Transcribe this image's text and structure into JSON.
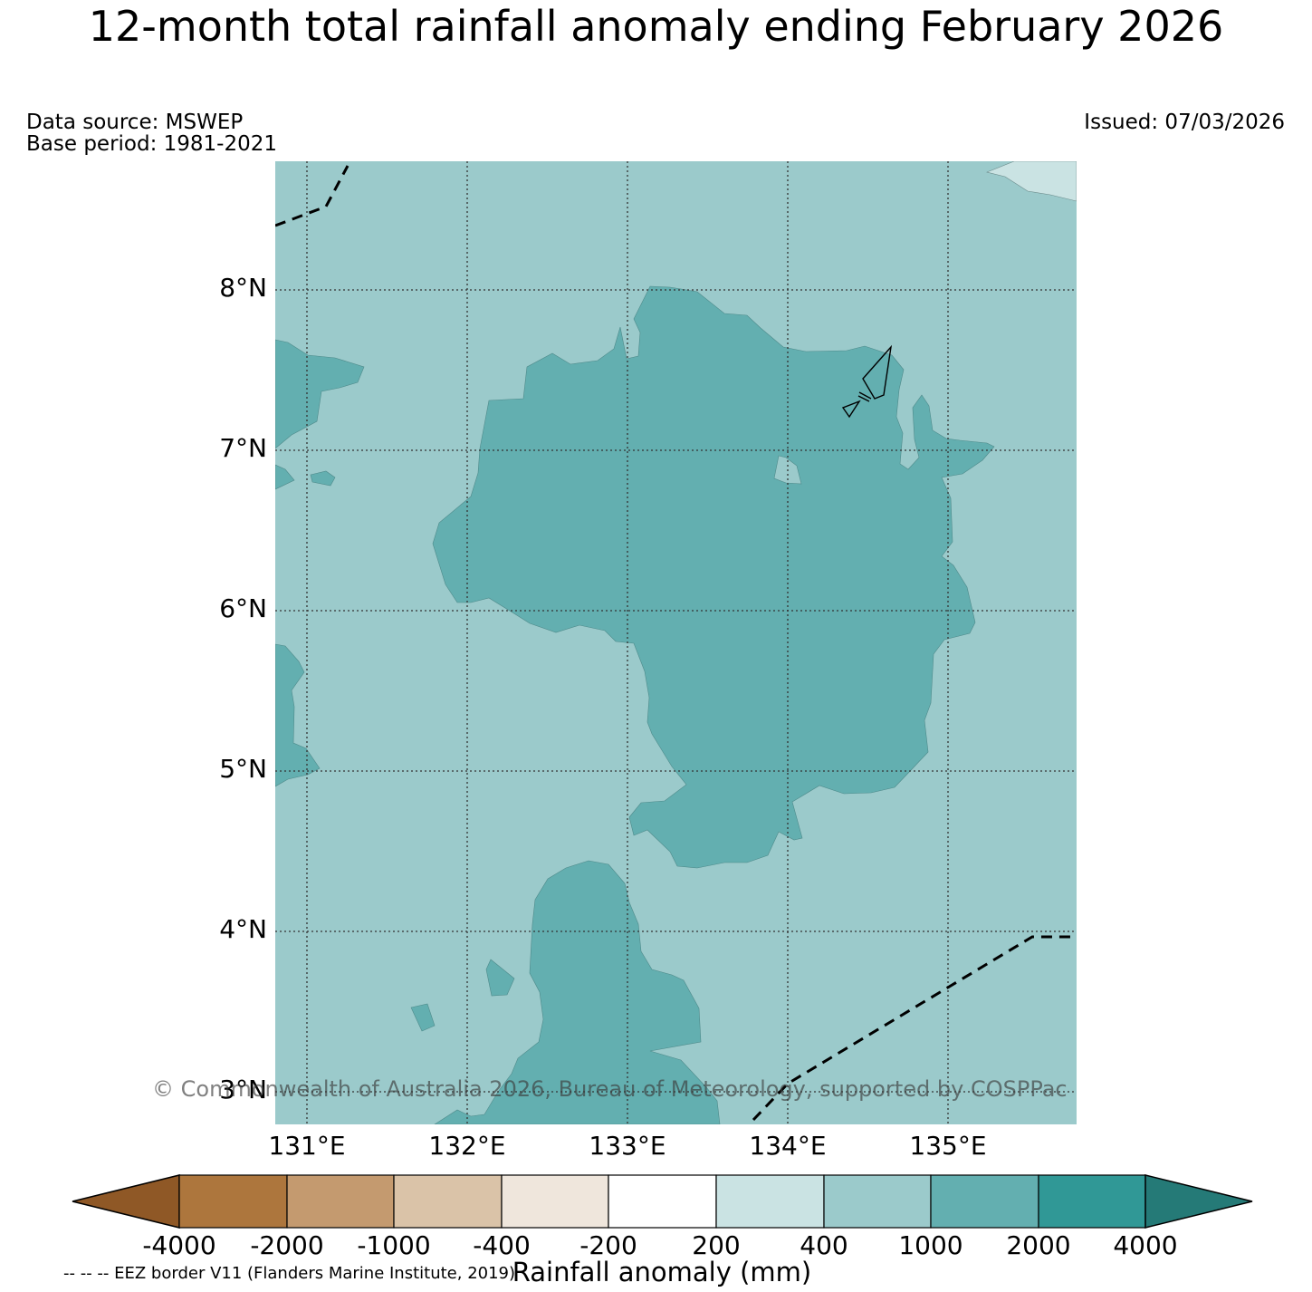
{
  "title": "12-month total rainfall anomaly ending February 2026",
  "data_source": "Data source: MSWEP",
  "base_period": "Base period: 1981-2021",
  "issued": "Issued: 07/03/2026",
  "latitude_labels": [
    "8°N",
    "7°N",
    "6°N",
    "5°N",
    "4°N",
    "3°N"
  ],
  "longitude_labels": [
    "131°E",
    "132°E",
    "133°E",
    "134°E",
    "135°E"
  ],
  "copyright": "© Commonwealth of Australia 2026, Bureau of Meteorology, supported by COSPPac",
  "eez_note": "-- -- -- EEZ border V11 (Flanders Marine Institute, 2019)",
  "colorbar": {
    "title": "Rainfall anomaly (mm)",
    "tick_labels": [
      "-4000",
      "-2000",
      "-1000",
      "-400",
      "-200",
      "200",
      "400",
      "1000",
      "2000",
      "4000"
    ],
    "colors": [
      "#8f5826",
      "#ad763d",
      "#c49a6f",
      "#dac3a8",
      "#efe6dc",
      "#ffffff",
      "#cae3e3",
      "#9bcacb",
      "#63afb0",
      "#309896",
      "#257a77"
    ]
  },
  "map": {
    "background_class_color": "#9bcacb",
    "anomaly_class_color": "#63afb0",
    "light_class_color": "#cae3e3"
  }
}
